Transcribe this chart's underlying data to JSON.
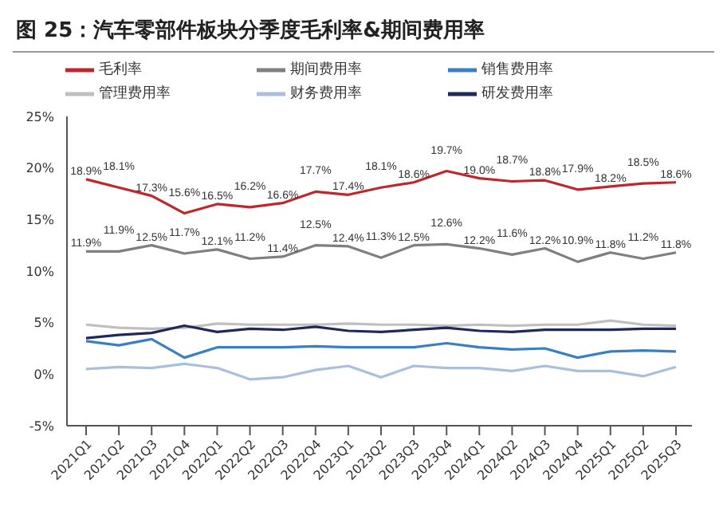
{
  "chart_data": {
    "type": "line",
    "title": "图 25：汽车零部件板块分季度毛利率&期间费用率",
    "categories": [
      "2021Q1",
      "2021Q2",
      "2021Q3",
      "2021Q4",
      "2022Q1",
      "2022Q2",
      "2022Q3",
      "2022Q4",
      "2023Q1",
      "2023Q2",
      "2023Q3",
      "2023Q4",
      "2024Q1",
      "2024Q2",
      "2024Q3",
      "2024Q4",
      "2025Q1",
      "2025Q2",
      "2025Q3"
    ],
    "series": [
      {
        "name": "毛利率",
        "color": "#c0272d",
        "values": [
          18.9,
          18.1,
          17.3,
          15.6,
          16.5,
          16.2,
          16.6,
          17.7,
          17.4,
          18.1,
          18.6,
          19.7,
          19.0,
          18.7,
          18.8,
          17.9,
          18.2,
          18.5,
          18.6
        ],
        "value_labels": [
          "18.9%",
          "18.1%",
          "17.3%",
          "15.6%",
          "16.5%",
          "16.2%",
          "16.6%",
          "17.7%",
          "17.4%",
          "18.1%",
          "18.6%",
          "19.7%",
          "19.0%",
          "18.7%",
          "18.8%",
          "17.9%",
          "18.2%",
          "18.5%",
          "18.6%"
        ]
      },
      {
        "name": "期间费用率",
        "color": "#7f7f7f",
        "values": [
          11.9,
          11.9,
          12.5,
          11.7,
          12.1,
          11.2,
          11.4,
          12.5,
          12.4,
          11.3,
          12.5,
          12.6,
          12.2,
          11.6,
          12.2,
          10.9,
          11.8,
          11.2,
          11.8
        ],
        "value_labels": [
          "11.9%",
          "11.9%",
          "12.5%",
          "11.7%",
          "12.1%",
          "11.2%",
          "11.4%",
          "12.5%",
          "12.4%",
          "11.3%",
          "12.5%",
          "12.6%",
          "12.2%",
          "11.6%",
          "12.2%",
          "10.9%",
          "11.8%",
          "11.2%",
          "11.8%"
        ]
      },
      {
        "name": "销售费用率",
        "color": "#3a7fc1",
        "values": [
          3.2,
          2.8,
          3.4,
          1.6,
          2.6,
          2.6,
          2.6,
          2.7,
          2.6,
          2.6,
          2.6,
          3.0,
          2.6,
          2.4,
          2.5,
          1.6,
          2.2,
          2.3,
          2.2
        ]
      },
      {
        "name": "管理费用率",
        "color": "#bfbfbf",
        "values": [
          4.8,
          4.5,
          4.4,
          4.5,
          4.9,
          4.8,
          4.8,
          4.8,
          4.9,
          4.8,
          4.8,
          4.7,
          4.8,
          4.7,
          4.8,
          4.8,
          5.2,
          4.8,
          4.7
        ]
      },
      {
        "name": "财务费用率",
        "color": "#a9bfdc",
        "values": [
          0.5,
          0.7,
          0.6,
          1.0,
          0.6,
          -0.5,
          -0.3,
          0.4,
          0.8,
          -0.3,
          0.8,
          0.6,
          0.6,
          0.3,
          0.8,
          0.3,
          0.3,
          -0.2,
          0.7
        ]
      },
      {
        "name": "研发费用率",
        "color": "#1f2a5a",
        "values": [
          3.5,
          3.8,
          4.0,
          4.7,
          4.1,
          4.4,
          4.3,
          4.6,
          4.2,
          4.1,
          4.3,
          4.5,
          4.2,
          4.1,
          4.3,
          4.3,
          4.3,
          4.4,
          4.4
        ]
      }
    ],
    "ylim": [
      -5,
      25
    ],
    "yticks": [
      {
        "value": -5,
        "label": "-5%"
      },
      {
        "value": 0,
        "label": "0%"
      },
      {
        "value": 5,
        "label": "5%"
      },
      {
        "value": 10,
        "label": "10%"
      },
      {
        "value": 15,
        "label": "15%"
      },
      {
        "value": 20,
        "label": "20%"
      },
      {
        "value": 25,
        "label": "25%"
      }
    ],
    "grid": false,
    "legend": "top",
    "marker": "none",
    "line_style": "solid"
  }
}
